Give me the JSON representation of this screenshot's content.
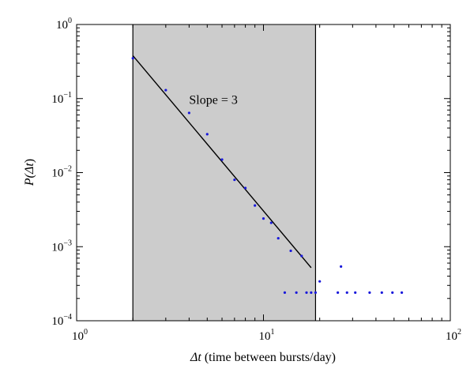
{
  "chart_data": {
    "type": "scatter",
    "title": "",
    "xlabel": {
      "symbol": "Δt",
      "text": " (time between bursts/day)"
    },
    "ylabel": {
      "prefix": "P(",
      "symbol": "Δt",
      "suffix": ")"
    },
    "xscale": "log",
    "yscale": "log",
    "xlim": [
      1,
      100
    ],
    "ylim": [
      0.0001,
      1
    ],
    "x_ticks": [
      {
        "value": 1,
        "base": "10",
        "exp": "0"
      },
      {
        "value": 10,
        "base": "10",
        "exp": "1"
      },
      {
        "value": 100,
        "base": "10",
        "exp": "2"
      }
    ],
    "y_ticks": [
      {
        "value": 0.0001,
        "base": "10",
        "exp": "−4"
      },
      {
        "value": 0.001,
        "base": "10",
        "exp": "−3"
      },
      {
        "value": 0.01,
        "base": "10",
        "exp": "−2"
      },
      {
        "value": 0.1,
        "base": "10",
        "exp": "−1"
      },
      {
        "value": 1,
        "base": "10",
        "exp": "0"
      }
    ],
    "shaded_region": {
      "x": [
        2,
        19
      ],
      "color": "#cccccc"
    },
    "fit_line": {
      "points": [
        [
          2,
          0.38
        ],
        [
          18,
          0.00052
        ]
      ],
      "color": "#000000"
    },
    "annotation": {
      "text": "Slope = 3",
      "x": 4,
      "y": 0.085
    },
    "series": [
      {
        "color": "#1a1adb",
        "x": [
          2,
          3,
          4,
          5,
          6,
          7,
          8,
          9,
          10,
          11,
          12,
          14,
          16,
          13,
          15,
          17,
          18,
          19,
          20,
          25,
          26,
          28,
          31,
          37,
          43,
          49,
          55
        ],
        "y": [
          0.35,
          0.13,
          0.064,
          0.033,
          0.015,
          0.008,
          0.0062,
          0.0036,
          0.0024,
          0.0021,
          0.0013,
          0.00088,
          0.00075,
          0.00024,
          0.00024,
          0.00024,
          0.00024,
          0.00024,
          0.00034,
          0.00024,
          0.00054,
          0.00024,
          0.00024,
          0.00024,
          0.00024,
          0.00024,
          0.00024
        ]
      }
    ],
    "grid": false,
    "legend": "none"
  }
}
